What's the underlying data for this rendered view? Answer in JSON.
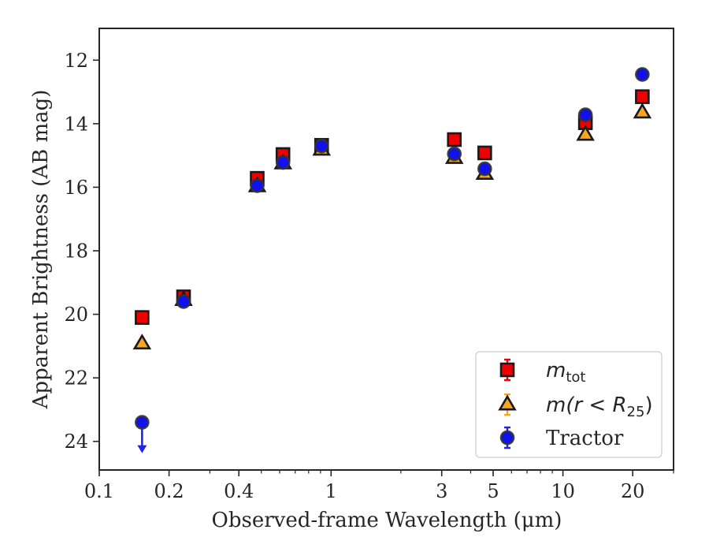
{
  "chart_data": {
    "type": "scatter",
    "title": "",
    "xlabel": "Observed-frame Wavelength (μm)",
    "ylabel": "Apparent Brightness (AB mag)",
    "x_scale": "log",
    "xlim": [
      0.1,
      30
    ],
    "ylim": [
      24.9,
      11.0
    ],
    "y_inverted": true,
    "grid": false,
    "legend_position": "lower-right",
    "x_ticks": [
      {
        "value": 0.1,
        "label": "0.1"
      },
      {
        "value": 0.2,
        "label": "0.2"
      },
      {
        "value": 0.4,
        "label": "0.4"
      },
      {
        "value": 1,
        "label": "1"
      },
      {
        "value": 3,
        "label": "3"
      },
      {
        "value": 5,
        "label": "5"
      },
      {
        "value": 10,
        "label": "10"
      },
      {
        "value": 20,
        "label": "20"
      }
    ],
    "x_minor_ticks": [
      0.3,
      0.5,
      0.6,
      0.7,
      0.8,
      0.9,
      2,
      4,
      6,
      7,
      8,
      9,
      30
    ],
    "y_ticks": [
      {
        "value": 12,
        "label": "12"
      },
      {
        "value": 14,
        "label": "14"
      },
      {
        "value": 16,
        "label": "16"
      },
      {
        "value": 18,
        "label": "18"
      },
      {
        "value": 20,
        "label": "20"
      },
      {
        "value": 22,
        "label": "22"
      },
      {
        "value": 24,
        "label": "24"
      }
    ],
    "series": [
      {
        "key": "mtot",
        "name": "m_tot",
        "legend_main": "m",
        "legend_sub": "tot",
        "marker": "square",
        "color": "#ee0000",
        "errcolor": "#ee0000",
        "points": [
          {
            "x": 0.153,
            "y": 20.1
          },
          {
            "x": 0.231,
            "y": 19.45
          },
          {
            "x": 0.48,
            "y": 15.72
          },
          {
            "x": 0.62,
            "y": 14.97
          },
          {
            "x": 0.91,
            "y": 14.68
          },
          {
            "x": 3.4,
            "y": 14.5
          },
          {
            "x": 4.6,
            "y": 14.92
          },
          {
            "x": 12.5,
            "y": 13.97
          },
          {
            "x": 22.0,
            "y": 13.15
          }
        ]
      },
      {
        "key": "mr25",
        "name": "m(r < R25)",
        "legend_main": "m(r < R",
        "legend_sub": "25",
        "legend_tail": ")",
        "marker": "triangle",
        "color": "#f5a623",
        "errcolor": "#f5a623",
        "points": [
          {
            "x": 0.153,
            "y": 20.92
          },
          {
            "x": 0.231,
            "y": 19.55
          },
          {
            "x": 0.48,
            "y": 15.97
          },
          {
            "x": 0.62,
            "y": 15.25
          },
          {
            "x": 0.91,
            "y": 14.82
          },
          {
            "x": 3.4,
            "y": 15.08
          },
          {
            "x": 4.6,
            "y": 15.58
          },
          {
            "x": 12.5,
            "y": 14.35
          },
          {
            "x": 22.0,
            "y": 13.65
          }
        ]
      },
      {
        "key": "tractor",
        "name": "Tractor",
        "legend_main": "Tractor",
        "marker": "circle",
        "color": "#1111ee",
        "errcolor": "#2222ee",
        "points": [
          {
            "x": 0.153,
            "y": 23.4,
            "upper_limit": true
          },
          {
            "x": 0.231,
            "y": 19.6
          },
          {
            "x": 0.48,
            "y": 15.95
          },
          {
            "x": 0.62,
            "y": 15.22
          },
          {
            "x": 0.91,
            "y": 14.7
          },
          {
            "x": 3.4,
            "y": 14.95
          },
          {
            "x": 4.6,
            "y": 15.42
          },
          {
            "x": 12.5,
            "y": 13.72
          },
          {
            "x": 22.0,
            "y": 12.45
          }
        ]
      }
    ]
  }
}
